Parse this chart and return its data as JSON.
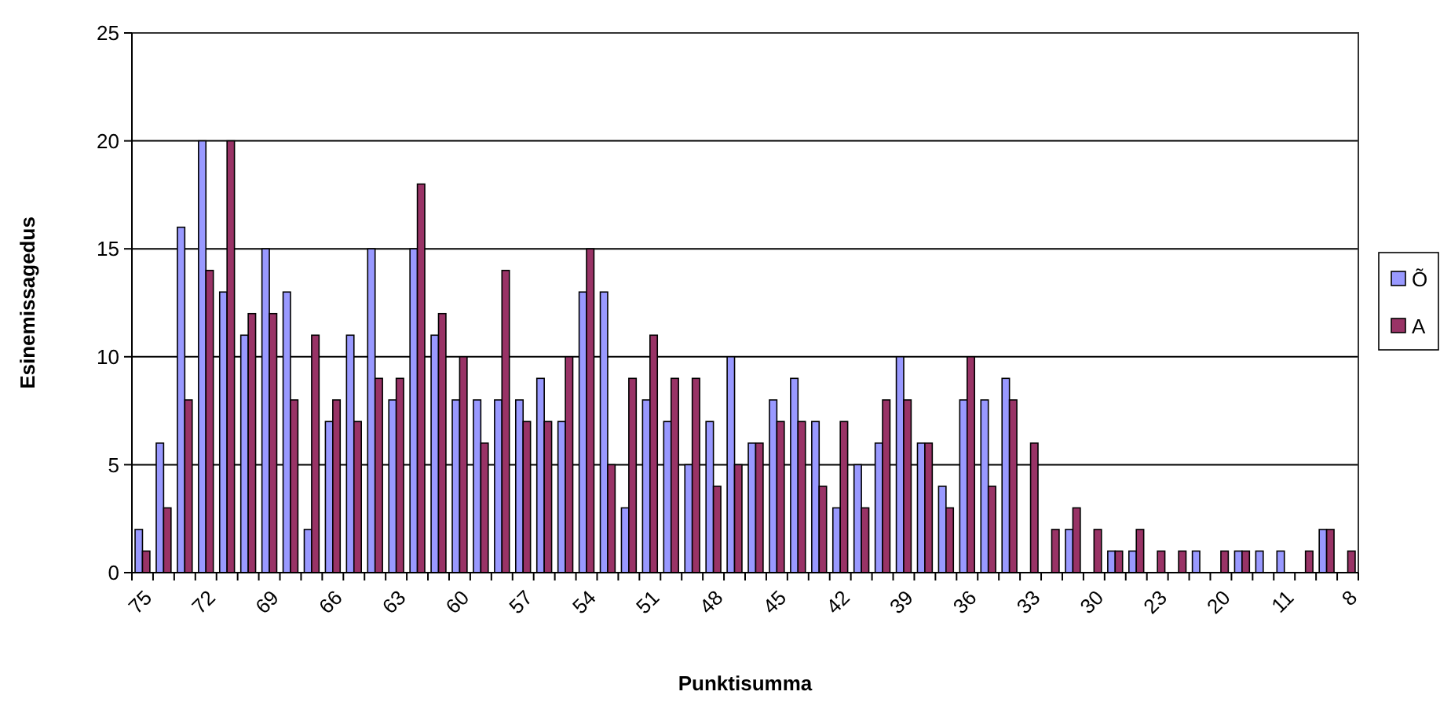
{
  "chart_data": {
    "type": "bar",
    "xlabel": "Punktisumma",
    "ylabel": "Esinemissagedus",
    "categories": [
      "75",
      null,
      null,
      "72",
      null,
      null,
      "69",
      null,
      null,
      "66",
      null,
      null,
      "63",
      null,
      null,
      "60",
      null,
      null,
      "57",
      null,
      null,
      "54",
      null,
      null,
      "51",
      null,
      null,
      "48",
      null,
      null,
      "45",
      null,
      null,
      "42",
      null,
      null,
      "39",
      null,
      null,
      "36",
      null,
      null,
      "33",
      null,
      null,
      "30",
      null,
      null,
      "23",
      null,
      null,
      "20",
      null,
      null,
      "11",
      null,
      null,
      "8"
    ],
    "series": [
      {
        "name": "Õ",
        "color": "#9999ff",
        "values": [
          2,
          6,
          16,
          20,
          13,
          11,
          15,
          13,
          2,
          7,
          11,
          15,
          8,
          15,
          11,
          8,
          8,
          8,
          8,
          9,
          7,
          13,
          13,
          3,
          8,
          7,
          5,
          7,
          10,
          6,
          8,
          9,
          7,
          3,
          5,
          6,
          10,
          6,
          4,
          8,
          8,
          9,
          0,
          0,
          2,
          0,
          1,
          1,
          0,
          0,
          1,
          0,
          1,
          1,
          1,
          0,
          2,
          0
        ]
      },
      {
        "name": "A",
        "color": "#993366",
        "values": [
          1,
          3,
          8,
          14,
          20,
          12,
          12,
          8,
          11,
          8,
          7,
          9,
          9,
          18,
          12,
          10,
          6,
          14,
          7,
          7,
          10,
          15,
          5,
          9,
          11,
          9,
          9,
          4,
          5,
          6,
          7,
          7,
          4,
          7,
          3,
          8,
          8,
          6,
          3,
          10,
          4,
          8,
          6,
          2,
          3,
          2,
          1,
          2,
          1,
          1,
          0,
          1,
          1,
          0,
          0,
          1,
          2,
          1
        ]
      }
    ],
    "ylim": [
      0,
      25
    ],
    "yticks": [
      0,
      5,
      10,
      15,
      20,
      25
    ],
    "grid": "y",
    "legend": "right"
  }
}
